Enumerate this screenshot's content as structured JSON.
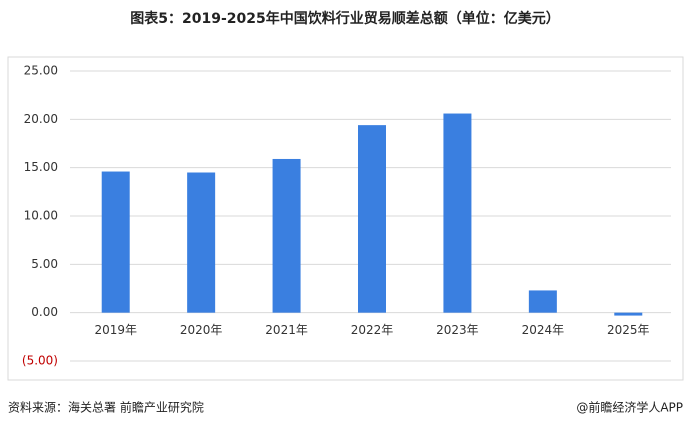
{
  "chart_data": {
    "type": "bar",
    "title": "图表5：2019-2025年中国饮料行业贸易顺差总额（单位：亿美元）",
    "categories": [
      "2019年",
      "2020年",
      "2021年",
      "2022年",
      "2023年",
      "2024年",
      "2025年"
    ],
    "values": [
      14.6,
      14.5,
      15.9,
      19.4,
      20.6,
      2.3,
      -0.3
    ],
    "color": "#3a7fe0",
    "ylim": [
      -5,
      25
    ],
    "yticks": [
      {
        "value": 25,
        "label": "25.00"
      },
      {
        "value": 20,
        "label": "20.00"
      },
      {
        "value": 15,
        "label": "15.00"
      },
      {
        "value": 10,
        "label": "10.00"
      },
      {
        "value": 5,
        "label": "5.00"
      },
      {
        "value": 0,
        "label": "0.00"
      },
      {
        "value": -5,
        "label": "(5.00)"
      }
    ],
    "grid": true,
    "source": "资料来源：海关总署  前瞻产业研究院",
    "credit": "@前瞻经济学人APP"
  }
}
